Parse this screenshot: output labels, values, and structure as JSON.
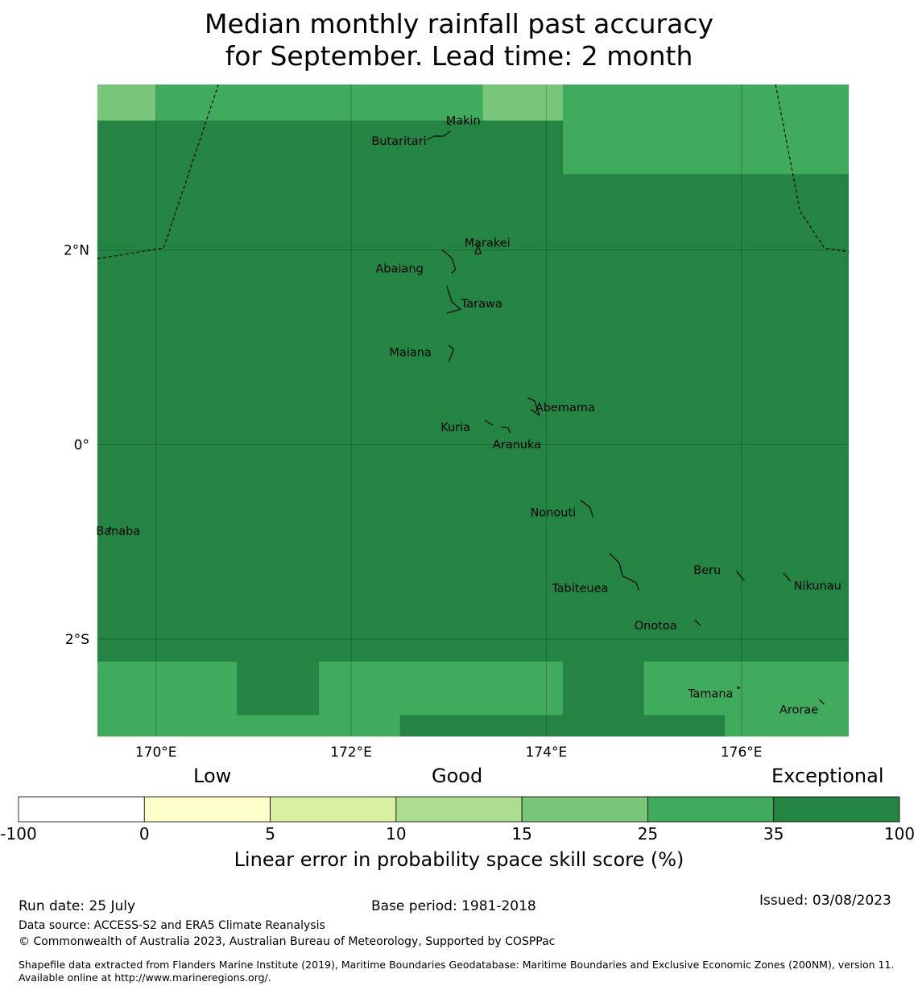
{
  "title": {
    "line1": "Median monthly rainfall past accuracy",
    "line2": "for September. Lead time: 2 month"
  },
  "map": {
    "extent": {
      "lon_min": 169.4,
      "lon_max": 177.1,
      "lat_min": -3.0,
      "lat_max": 3.7
    },
    "grid_lines": {
      "lons": [
        170,
        172,
        174,
        176
      ],
      "lats": [
        2,
        0,
        -2
      ]
    },
    "lon_ticks": [
      {
        "lon": 170,
        "label": "170°E"
      },
      {
        "lon": 172,
        "label": "172°E"
      },
      {
        "lon": 174,
        "label": "174°E"
      },
      {
        "lon": 176,
        "label": "176°E"
      }
    ],
    "lat_ticks": [
      {
        "lat": 2,
        "label": "2°N"
      },
      {
        "lat": 0,
        "label": "0°"
      },
      {
        "lat": -2,
        "label": "2°S"
      }
    ],
    "cells": [
      {
        "lon0": 169.4,
        "lon1": 170.0,
        "lat0": 3.33,
        "lat1": 3.7,
        "cls": 4
      },
      {
        "lon0": 170.0,
        "lon1": 173.35,
        "lat0": 3.33,
        "lat1": 3.7,
        "cls": 5
      },
      {
        "lon0": 173.35,
        "lon1": 174.17,
        "lat0": 3.33,
        "lat1": 3.7,
        "cls": 4
      },
      {
        "lon0": 174.17,
        "lon1": 177.1,
        "lat0": 2.78,
        "lat1": 3.7,
        "cls": 5
      },
      {
        "lon0": 169.4,
        "lon1": 170.83,
        "lat0": -3.0,
        "lat1": -2.23,
        "cls": 5
      },
      {
        "lon0": 170.83,
        "lon1": 171.67,
        "lat0": -2.78,
        "lat1": -2.23,
        "cls": 6
      },
      {
        "lon0": 170.83,
        "lon1": 171.67,
        "lat0": -3.0,
        "lat1": -2.78,
        "cls": 5
      },
      {
        "lon0": 171.67,
        "lon1": 174.17,
        "lat0": -2.78,
        "lat1": -2.23,
        "cls": 5
      },
      {
        "lon0": 171.67,
        "lon1": 172.5,
        "lat0": -3.0,
        "lat1": -2.78,
        "cls": 5
      },
      {
        "lon0": 174.17,
        "lon1": 175.0,
        "lat0": -3.0,
        "lat1": -2.23,
        "cls": 6
      },
      {
        "lon0": 175.0,
        "lon1": 177.1,
        "lat0": -2.78,
        "lat1": -2.23,
        "cls": 5
      },
      {
        "lon0": 175.83,
        "lon1": 177.1,
        "lat0": -3.0,
        "lat1": -2.78,
        "cls": 5
      }
    ],
    "background_class": 6,
    "eez_lines": [
      [
        [
          169.4,
          1.91
        ],
        [
          170.08,
          2.02
        ],
        [
          170.64,
          3.7
        ]
      ],
      [
        [
          176.35,
          3.7
        ],
        [
          176.6,
          2.4
        ],
        [
          176.85,
          2.02
        ],
        [
          177.1,
          1.98
        ]
      ]
    ],
    "islands": [
      {
        "name": "Makin",
        "lon": 173.0,
        "lat": 3.34,
        "shape": [
          [
            172.98,
            3.32
          ],
          [
            173.02,
            3.28
          ]
        ]
      },
      {
        "name": "Butaritari",
        "lon": 172.78,
        "lat": 3.08,
        "shape": [
          [
            172.78,
            3.13
          ],
          [
            172.85,
            3.17
          ],
          [
            172.95,
            3.17
          ],
          [
            173.02,
            3.22
          ]
        ]
      },
      {
        "name": "Marakei",
        "lon": 173.28,
        "lat": 2.0,
        "shape": [
          [
            173.27,
            1.96
          ],
          [
            173.3,
            2.05
          ],
          [
            173.33,
            1.96
          ],
          [
            173.27,
            1.96
          ]
        ]
      },
      {
        "name": "Abaiang",
        "lon": 172.95,
        "lat": 1.85,
        "shape": [
          [
            172.93,
            2.0
          ],
          [
            173.03,
            1.92
          ],
          [
            173.07,
            1.8
          ],
          [
            173.03,
            1.76
          ]
        ]
      },
      {
        "name": "Tarawa",
        "lon": 173.05,
        "lat": 1.45,
        "shape": [
          [
            172.98,
            1.63
          ],
          [
            173.03,
            1.47
          ],
          [
            173.12,
            1.39
          ],
          [
            173.05,
            1.37
          ],
          [
            172.98,
            1.35
          ]
        ]
      },
      {
        "name": "Maiana",
        "lon": 173.02,
        "lat": 0.96,
        "shape": [
          [
            173.0,
            1.02
          ],
          [
            173.05,
            0.98
          ],
          [
            173.0,
            0.85
          ]
        ]
      },
      {
        "name": "Abemama",
        "lon": 173.88,
        "lat": 0.4,
        "shape": [
          [
            173.81,
            0.48
          ],
          [
            173.88,
            0.45
          ],
          [
            173.93,
            0.3
          ],
          [
            173.84,
            0.36
          ]
        ]
      },
      {
        "name": "Kuria",
        "lon": 173.4,
        "lat": 0.22,
        "shape": [
          [
            173.37,
            0.25
          ],
          [
            173.45,
            0.2
          ]
        ]
      },
      {
        "name": "Aranuka",
        "lon": 173.6,
        "lat": 0.17,
        "shape": [
          [
            173.54,
            0.18
          ],
          [
            173.61,
            0.17
          ],
          [
            173.63,
            0.12
          ]
        ]
      },
      {
        "name": "Nonouti",
        "lon": 174.4,
        "lat": -0.64,
        "shape": [
          [
            174.35,
            -0.57
          ],
          [
            174.45,
            -0.65
          ],
          [
            174.48,
            -0.75
          ]
        ]
      },
      {
        "name": "Tabiteuea",
        "lon": 174.8,
        "lat": -1.35,
        "shape": [
          [
            174.65,
            -1.12
          ],
          [
            174.75,
            -1.22
          ],
          [
            174.78,
            -1.35
          ],
          [
            174.92,
            -1.42
          ],
          [
            174.95,
            -1.5
          ]
        ]
      },
      {
        "name": "Beru",
        "lon": 175.98,
        "lat": -1.33,
        "shape": [
          [
            175.95,
            -1.3
          ],
          [
            176.03,
            -1.4
          ]
        ]
      },
      {
        "name": "Nikunau",
        "lon": 176.45,
        "lat": -1.36,
        "shape": [
          [
            176.43,
            -1.32
          ],
          [
            176.5,
            -1.4
          ]
        ]
      },
      {
        "name": "Onotoa",
        "lon": 175.55,
        "lat": -1.8,
        "shape": [
          [
            175.52,
            -1.8
          ],
          [
            175.58,
            -1.86
          ]
        ]
      },
      {
        "name": "Tamana",
        "lon": 175.98,
        "lat": -2.5,
        "shape": [
          [
            175.97,
            -2.5
          ]
        ]
      },
      {
        "name": "Arorae",
        "lon": 176.82,
        "lat": -2.63,
        "shape": [
          [
            176.8,
            -2.62
          ],
          [
            176.85,
            -2.67
          ]
        ]
      },
      {
        "name": "Banaba",
        "lon": 169.53,
        "lat": -0.86,
        "shape": [
          [
            169.53,
            -0.86
          ]
        ]
      }
    ]
  },
  "colorbar": {
    "categories": [
      "Low",
      "Good",
      "Exceptional"
    ],
    "ticks": [
      "-100",
      "0",
      "5",
      "10",
      "15",
      "25",
      "35",
      "100"
    ],
    "colors": [
      "#ffffff",
      "#ffffcc",
      "#d9f0a3",
      "#addd8e",
      "#78c679",
      "#41ab5d",
      "#238443"
    ],
    "label": "Linear error in probability space skill score (%)"
  },
  "footer": {
    "run_date": "Run date: 25 July",
    "base_period": "Base period: 1981-2018",
    "issued": "Issued: 03/08/2023",
    "data_source": "Data source: ACCESS-S2 and ERA5 Climate Reanalysis",
    "copyright": "© Commonwealth of Australia 2023, Australian Bureau of Meteorology, Supported by COSPPac",
    "shapefile": "Shapefile data extracted from Flanders Marine Institute (2019), Maritime Boundaries Geodatabase: Maritime Boundaries and Exclusive Economic Zones (200NM), version 11. Available online at http://www.marineregions.org/."
  }
}
